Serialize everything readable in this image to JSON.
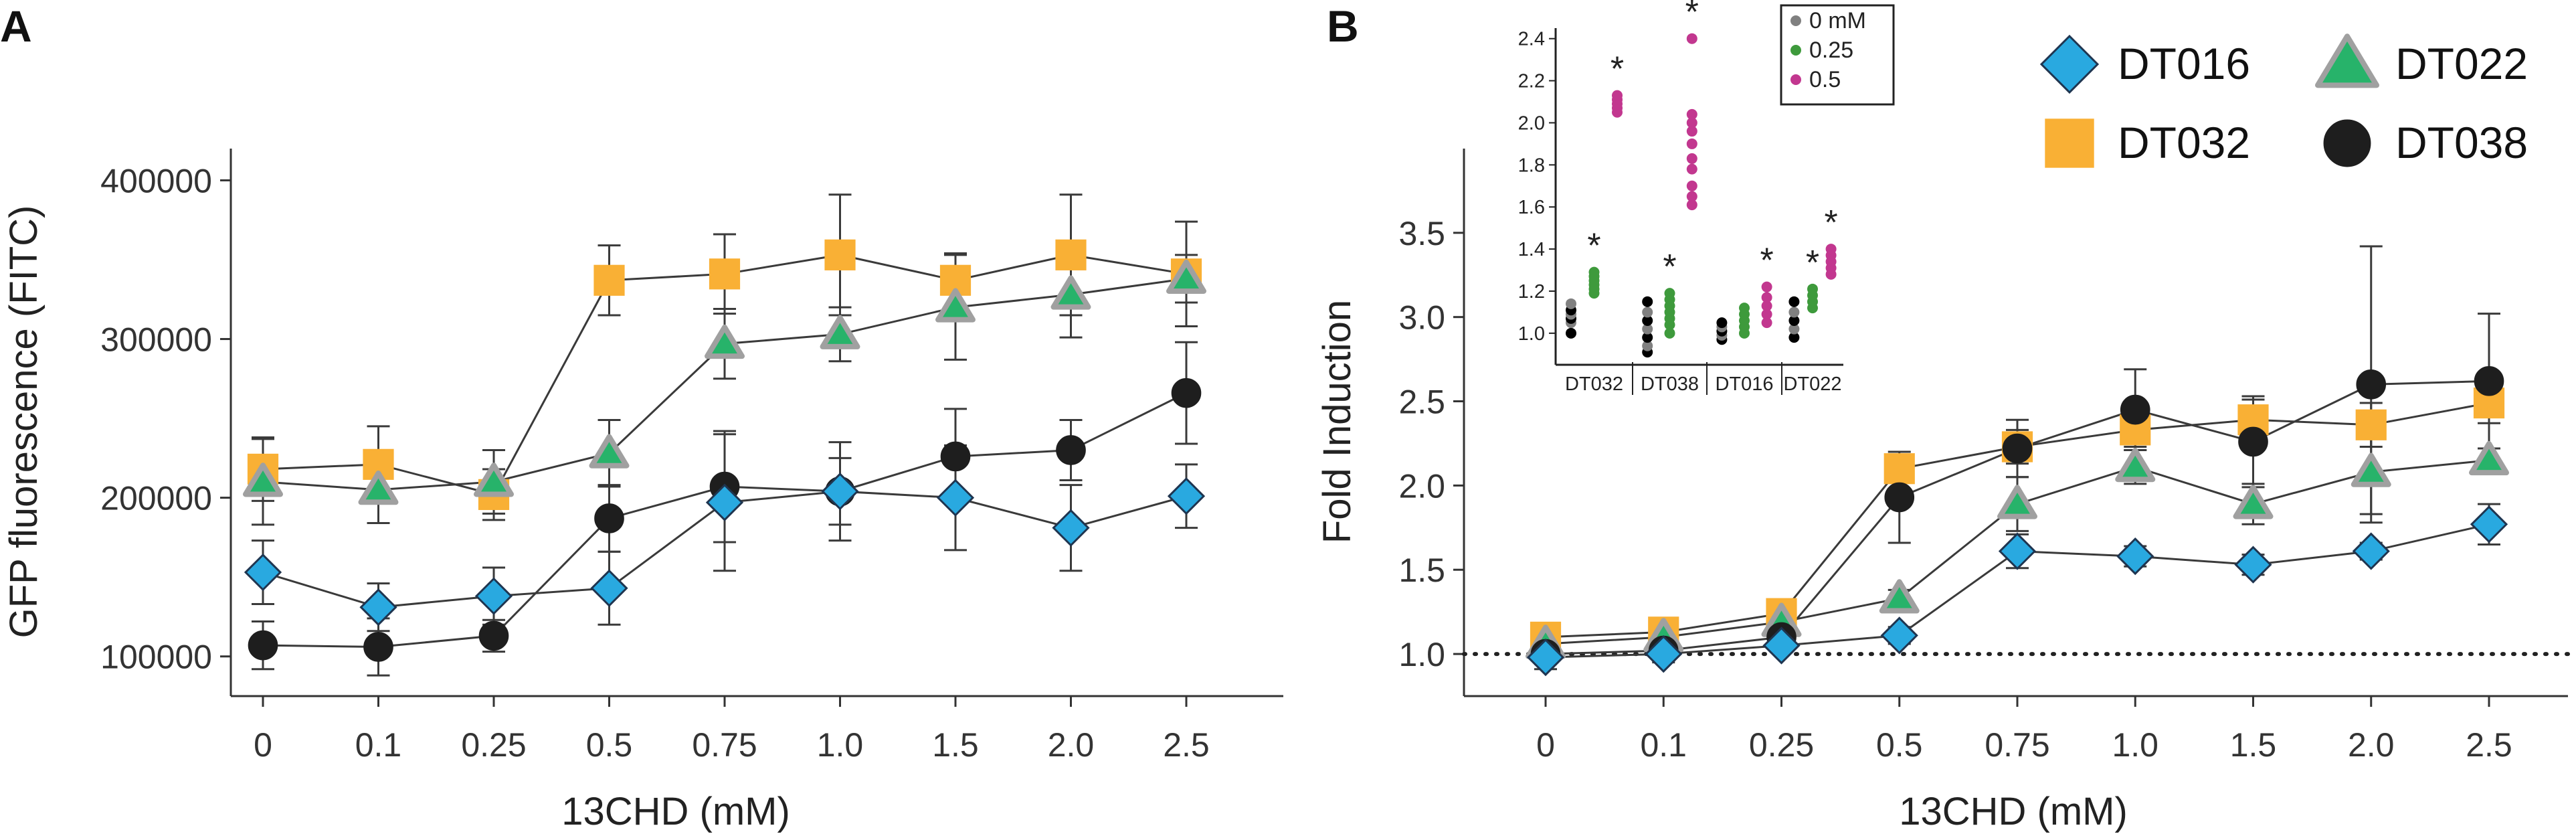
{
  "panel_labels": [
    "A",
    "B"
  ],
  "legend": {
    "entries": [
      {
        "name": "DT016",
        "marker": "diamond-icon"
      },
      {
        "name": "DT022",
        "marker": "triangle-icon"
      },
      {
        "name": "DT032",
        "marker": "square-icon"
      },
      {
        "name": "DT038",
        "marker": "circle-icon"
      }
    ]
  },
  "colors": {
    "DT016": "#29A9E0",
    "DT022": "#27B36A",
    "DT032": "#F9B035",
    "DT038": "#1E1E1E",
    "triangle_edge": "#A0A0A0",
    "inset_0": "#808080",
    "inset_0_dark": "#000000",
    "inset_025": "#3E9A3C",
    "inset_05": "#C2378F"
  },
  "chart_data": [
    {
      "type": "line",
      "panel": "A",
      "xlabel": "13CHD (mM)",
      "ylabel": "GFP fluorescence (FITC)",
      "categories": [
        "0",
        "0.1",
        "0.25",
        "0.5",
        "0.75",
        "1.0",
        "1.5",
        "2.0",
        "2.5"
      ],
      "ylim": [
        75000,
        420000
      ],
      "yticks": [
        100000,
        200000,
        300000,
        400000
      ],
      "ytick_labels": [
        "100000",
        "200000",
        "300000",
        "400000"
      ],
      "grid": false,
      "series": [
        {
          "name": "DT016",
          "values": [
            153000,
            131000,
            138000,
            143000,
            197000,
            204000,
            200000,
            181000,
            201000
          ],
          "err": [
            20000,
            15000,
            18000,
            23000,
            43000,
            31000,
            33000,
            27000,
            20000
          ]
        },
        {
          "name": "DT022",
          "values": [
            210000,
            205000,
            210000,
            228000,
            297000,
            303000,
            320000,
            328000,
            338000
          ],
          "err": [
            27000,
            21000,
            20000,
            21000,
            22000,
            17000,
            33000,
            27000,
            15000
          ]
        },
        {
          "name": "DT032",
          "values": [
            218000,
            221000,
            202000,
            337000,
            341000,
            353000,
            337000,
            353000,
            341000
          ],
          "err": [
            20000,
            24000,
            16000,
            22000,
            25000,
            38000,
            17000,
            38000,
            33000
          ]
        },
        {
          "name": "DT038",
          "values": [
            107000,
            106000,
            113000,
            187000,
            207000,
            204000,
            226000,
            230000,
            266000
          ],
          "err": [
            15000,
            18000,
            10000,
            21000,
            35000,
            21000,
            30000,
            19000,
            32000
          ]
        }
      ]
    },
    {
      "type": "line",
      "panel": "B",
      "xlabel": "13CHD (mM)",
      "ylabel": "Fold Induction",
      "categories": [
        "0",
        "0.1",
        "0.25",
        "0.5",
        "0.75",
        "1.0",
        "1.5",
        "2.0",
        "2.5"
      ],
      "ylim": [
        0.75,
        4.0
      ],
      "yticks": [
        1.0,
        1.5,
        2.0,
        2.5,
        3.0,
        3.5
      ],
      "ytick_labels": [
        "1.0",
        "1.5",
        "2.0",
        "2.5",
        "3.0",
        "3.5"
      ],
      "reference_line": {
        "y": 1.0,
        "style": "dotted"
      },
      "grid": false,
      "series": [
        {
          "name": "DT016",
          "values": [
            0.98,
            1.0,
            1.05,
            1.11,
            1.61,
            1.58,
            1.53,
            1.61,
            1.77
          ],
          "err": [
            0.07,
            0.05,
            0.04,
            0.05,
            0.1,
            0.06,
            0.06,
            0.05,
            0.12
          ]
        },
        {
          "name": "DT022",
          "values": [
            1.06,
            1.1,
            1.19,
            1.33,
            1.89,
            2.11,
            1.89,
            2.08,
            2.15
          ],
          "err": [
            0.06,
            0.06,
            0.06,
            0.05,
            0.16,
            0.1,
            0.12,
            0.25,
            0.07
          ]
        },
        {
          "name": "DT032",
          "values": [
            1.1,
            1.13,
            1.24,
            2.1,
            2.23,
            2.33,
            2.39,
            2.36,
            2.49
          ],
          "err": [
            0.05,
            0.05,
            0.05,
            0.07,
            0.1,
            0.1,
            0.12,
            0.13,
            0.12
          ]
        },
        {
          "name": "DT038",
          "values": [
            1.0,
            1.02,
            1.1,
            1.93,
            2.22,
            2.45,
            2.26,
            2.6,
            2.62
          ],
          "err": [
            0.06,
            0.05,
            0.05,
            0.27,
            0.17,
            0.24,
            0.27,
            0.82,
            0.4
          ]
        }
      ]
    },
    {
      "type": "scatter",
      "panel": "B-inset",
      "categories": [
        "DT032",
        "DT038",
        "DT016",
        "DT022"
      ],
      "ylim": [
        0.85,
        2.45
      ],
      "yticks": [
        1.0,
        1.2,
        1.4,
        1.6,
        1.8,
        2.0,
        2.2,
        2.4
      ],
      "ytick_labels": [
        "1.0",
        "1.2",
        "1.4",
        "1.6",
        "1.8",
        "2.0",
        "2.2",
        "2.4"
      ],
      "legend": [
        "0 mM",
        "0.25",
        "0.5"
      ],
      "significance_marker": "*",
      "groups": [
        {
          "name": "DT032",
          "0 mM": [
            1.0,
            1.05,
            1.07,
            1.09,
            1.11,
            1.14
          ],
          "0.25": [
            1.19,
            1.21,
            1.23,
            1.25,
            1.27,
            1.29
          ],
          "0.5": [
            2.05,
            2.07,
            2.09,
            2.11,
            2.13
          ],
          "stars": [
            "0.25",
            "0.5"
          ]
        },
        {
          "name": "DT038",
          "0 mM": [
            0.91,
            0.94,
            0.98,
            1.02,
            1.06,
            1.1,
            1.15
          ],
          "0.25": [
            1.0,
            1.04,
            1.07,
            1.1,
            1.13,
            1.16,
            1.19
          ],
          "0.5": [
            1.61,
            1.65,
            1.7,
            1.78,
            1.83,
            1.9,
            1.96,
            2.0,
            2.04,
            2.4
          ],
          "stars": [
            "0.25",
            "0.5"
          ]
        },
        {
          "name": "DT016",
          "0 mM": [
            0.97,
            0.99,
            1.01,
            1.03,
            1.05
          ],
          "0.25": [
            1.0,
            1.03,
            1.06,
            1.09,
            1.12
          ],
          "0.5": [
            1.05,
            1.09,
            1.13,
            1.17,
            1.22
          ],
          "stars": [
            "0.5"
          ]
        },
        {
          "name": "DT022",
          "0 mM": [
            0.98,
            1.02,
            1.06,
            1.1,
            1.15
          ],
          "0.25": [
            1.12,
            1.15,
            1.18,
            1.21
          ],
          "0.5": [
            1.28,
            1.31,
            1.34,
            1.37,
            1.4
          ],
          "stars": [
            "0.25",
            "0.5"
          ]
        }
      ]
    }
  ]
}
